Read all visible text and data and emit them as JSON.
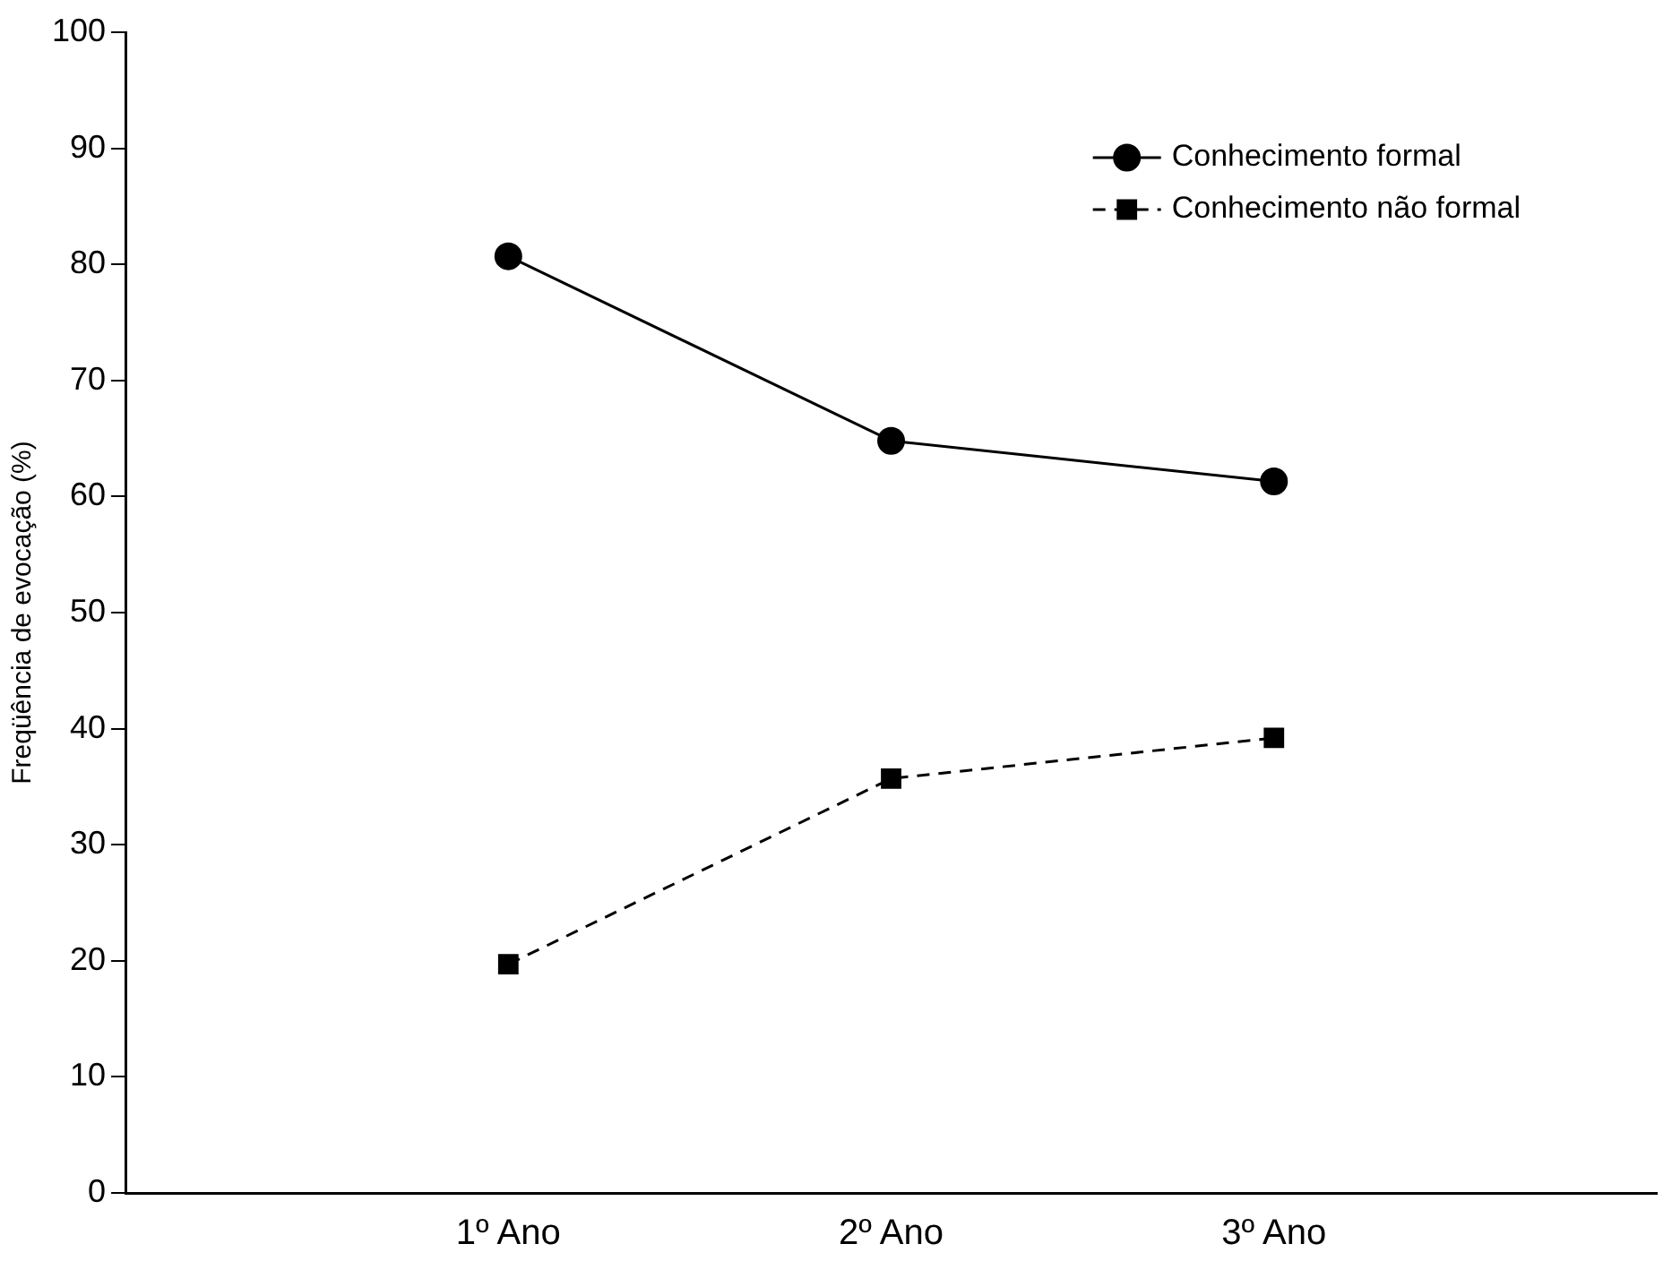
{
  "chart_data": {
    "type": "line",
    "ylabel": "Freqüência de evocação (%)",
    "categories": [
      "1º Ano",
      "2º Ano",
      "3º Ano"
    ],
    "ylim": [
      0,
      100
    ],
    "yticks": [
      0,
      10,
      20,
      30,
      40,
      50,
      60,
      70,
      80,
      90,
      100
    ],
    "grid": false,
    "legend": "top right",
    "series": [
      {
        "name": "Conhecimento formal",
        "color": "#000000",
        "values": [
          80.7,
          64.8,
          61.3
        ],
        "marker": "circle",
        "line_style": "solid"
      },
      {
        "name": "Conhecimento não formal",
        "color": "#000000",
        "values": [
          19.7,
          35.7,
          39.2
        ],
        "marker": "square",
        "line_style": "dashed"
      }
    ]
  }
}
